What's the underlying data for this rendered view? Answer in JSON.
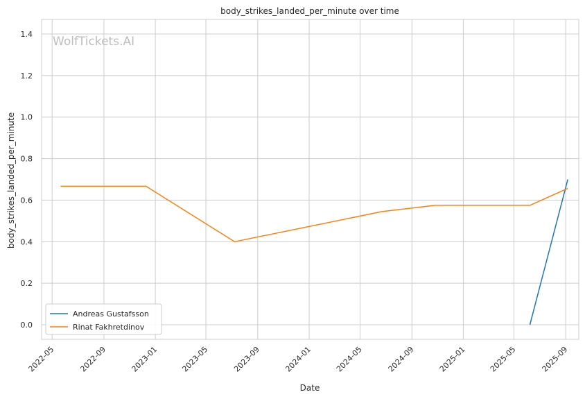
{
  "chart_data": {
    "type": "line",
    "title": "body_strikes_landed_per_minute over time",
    "xlabel": "Date",
    "ylabel": "body_strikes_landed_per_minute",
    "watermark": "WolfTickets.AI",
    "x_ticks": [
      "2022-05",
      "2022-09",
      "2023-01",
      "2023-05",
      "2023-09",
      "2024-01",
      "2024-05",
      "2024-09",
      "2025-01",
      "2025-05",
      "2025-09"
    ],
    "y_ticks": [
      "0.0",
      "0.2",
      "0.4",
      "0.6",
      "0.8",
      "1.0",
      "1.2",
      "1.4"
    ],
    "xlim": [
      "2022-04-06",
      "2025-10-02"
    ],
    "ylim": [
      -0.07,
      1.47
    ],
    "grid": true,
    "legend_position": "lower-left",
    "series": [
      {
        "name": "Andreas Gustafsson",
        "color": "#1f77b4",
        "points": [
          [
            "2025-06-08",
            0.0
          ],
          [
            "2025-09-06",
            0.7
          ]
        ]
      },
      {
        "name": "Rinat Fakhretdinov",
        "color": "#ff7f0e",
        "points": [
          [
            "2022-05-21",
            0.667
          ],
          [
            "2022-12-10",
            0.667
          ],
          [
            "2023-07-08",
            0.4
          ],
          [
            "2024-06-22",
            0.545
          ],
          [
            "2024-10-26",
            0.575
          ],
          [
            "2025-06-08",
            0.575
          ],
          [
            "2025-09-06",
            0.657
          ]
        ]
      }
    ]
  }
}
